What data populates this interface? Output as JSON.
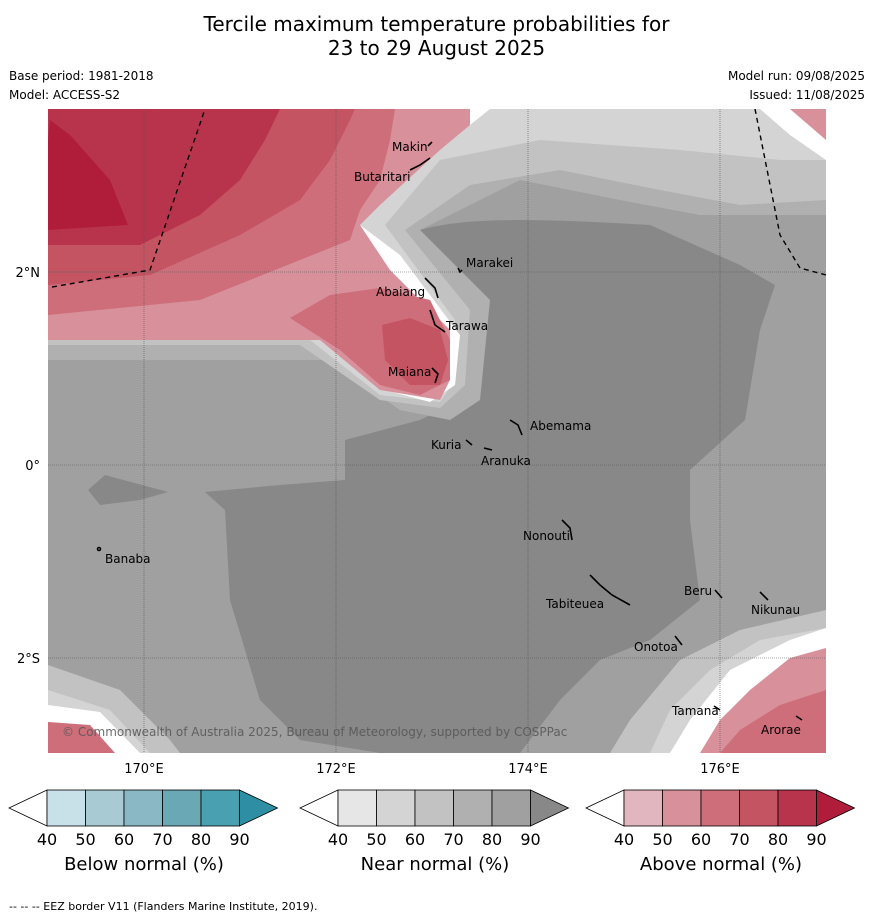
{
  "title_line1": "Tercile maximum temperature probabilities for",
  "title_line2": "23 to 29 August 2025",
  "base_period": "Base period: 1981-2018",
  "model": "Model: ACCESS-S2",
  "model_run": "Model run: 09/08/2025",
  "issued": "Issued: 11/08/2025",
  "copyright": "© Commonwealth of Australia 2025, Bureau of Meteorology, supported by COSPPac",
  "lat_labels": [
    "2°N",
    "0°",
    "2°S"
  ],
  "lon_labels": [
    "170°E",
    "172°E",
    "174°E",
    "176°E"
  ],
  "places": [
    {
      "name": "Makin"
    },
    {
      "name": "Butaritari"
    },
    {
      "name": "Marakei"
    },
    {
      "name": "Abaiang"
    },
    {
      "name": "Tarawa"
    },
    {
      "name": "Maiana"
    },
    {
      "name": "Abemama"
    },
    {
      "name": "Kuria"
    },
    {
      "name": "Aranuka"
    },
    {
      "name": "Banaba"
    },
    {
      "name": "Nonouti"
    },
    {
      "name": "Tabiteuea"
    },
    {
      "name": "Beru"
    },
    {
      "name": "Nikunau"
    },
    {
      "name": "Onotoa"
    },
    {
      "name": "Tamana"
    },
    {
      "name": "Arorae"
    }
  ],
  "colorbars": [
    {
      "label": "Below normal (%)",
      "ticks": [
        "40",
        "50",
        "60",
        "70",
        "80",
        "90"
      ],
      "colors": [
        "#ffffff",
        "#c8e0e8",
        "#a8cad2",
        "#8ab8c4",
        "#6aa8b6",
        "#48a0b0",
        "#2e8fa4"
      ]
    },
    {
      "label": "Near normal (%)",
      "ticks": [
        "40",
        "50",
        "60",
        "70",
        "80",
        "90"
      ],
      "colors": [
        "#ffffff",
        "#e6e6e6",
        "#d4d4d4",
        "#c2c2c2",
        "#b0b0b0",
        "#a0a0a0",
        "#888888"
      ]
    },
    {
      "label": "Above normal (%)",
      "ticks": [
        "40",
        "50",
        "60",
        "70",
        "80",
        "90"
      ],
      "colors": [
        "#ffffff",
        "#e2b6bf",
        "#d8909b",
        "#cd6e7a",
        "#c45462",
        "#b8344c",
        "#b01d3a"
      ]
    }
  ],
  "footer": "--  --  -- EEZ border V11 (Flanders Marine Institute, 2019)."
}
